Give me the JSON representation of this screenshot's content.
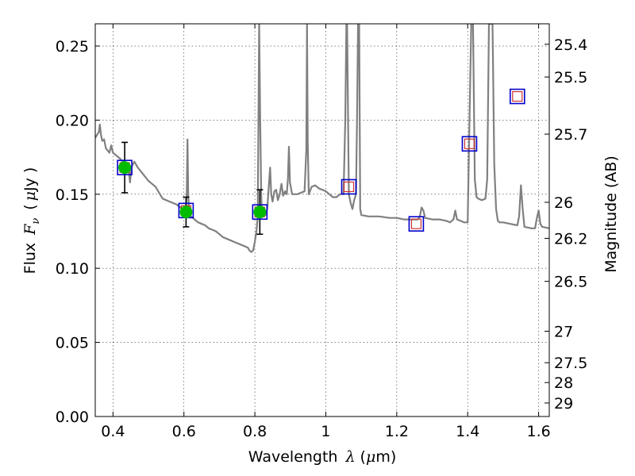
{
  "chart_data": {
    "type": "line",
    "xlabel": "Wavelength",
    "xlabel_symbol": "λ",
    "xlabel_unit_pre": "(",
    "xlabel_unit_mu": "μ",
    "xlabel_unit_post": "m)",
    "ylabel": "Flux",
    "ylabel_symbol_main": "F",
    "ylabel_symbol_sub": "ν",
    "ylabel_unit_pre": "(",
    "ylabel_unit_mu": "μ",
    "ylabel_unit_post": "Jy )",
    "y2label": "Magnitude (AB)",
    "xlim": [
      0.35,
      1.63
    ],
    "ylim": [
      0.0,
      0.265
    ],
    "x_ticks": [
      0.4,
      0.6,
      0.8,
      1.0,
      1.2,
      1.4,
      1.6
    ],
    "x_tick_labels": [
      "0.4",
      "0.6",
      "0.8",
      "1",
      "1.2",
      "1.4",
      "1.6"
    ],
    "y_ticks": [
      0.0,
      0.05,
      0.1,
      0.15,
      0.2,
      0.25
    ],
    "y_tick_labels": [
      "0.00",
      "0.05",
      "0.10",
      "0.15",
      "0.20",
      "0.25"
    ],
    "y2_tick_labels": [
      "25.4",
      "25.5",
      "25.7",
      "26",
      "26.2",
      "26.5",
      "27",
      "27.5",
      "28",
      "29"
    ],
    "grid": true,
    "colors": {
      "spectrum": "#808080",
      "observed": "#00bb00",
      "errorbar": "#000000",
      "outer_square": "#0000cc",
      "inner_square": "#cc3333"
    },
    "series": [
      {
        "kind": "spectrum",
        "points": [
          [
            0.35,
            0.188
          ],
          [
            0.355,
            0.19
          ],
          [
            0.36,
            0.192
          ],
          [
            0.363,
            0.197
          ],
          [
            0.366,
            0.19
          ],
          [
            0.37,
            0.186
          ],
          [
            0.375,
            0.187
          ],
          [
            0.38,
            0.181
          ],
          [
            0.39,
            0.178
          ],
          [
            0.395,
            0.183
          ],
          [
            0.4,
            0.178
          ],
          [
            0.41,
            0.176
          ],
          [
            0.42,
            0.174
          ],
          [
            0.43,
            0.171
          ],
          [
            0.44,
            0.167
          ],
          [
            0.445,
            0.165
          ],
          [
            0.448,
            0.158
          ],
          [
            0.452,
            0.168
          ],
          [
            0.46,
            0.172
          ],
          [
            0.47,
            0.168
          ],
          [
            0.48,
            0.165
          ],
          [
            0.49,
            0.162
          ],
          [
            0.5,
            0.159
          ],
          [
            0.51,
            0.157
          ],
          [
            0.52,
            0.155
          ],
          [
            0.53,
            0.151
          ],
          [
            0.54,
            0.147
          ],
          [
            0.55,
            0.146
          ],
          [
            0.56,
            0.145
          ],
          [
            0.57,
            0.144
          ],
          [
            0.58,
            0.143
          ],
          [
            0.59,
            0.141
          ],
          [
            0.6,
            0.139
          ],
          [
            0.605,
            0.14
          ],
          [
            0.608,
            0.15
          ],
          [
            0.61,
            0.187
          ],
          [
            0.612,
            0.15
          ],
          [
            0.615,
            0.137
          ],
          [
            0.62,
            0.135
          ],
          [
            0.63,
            0.133
          ],
          [
            0.64,
            0.131
          ],
          [
            0.65,
            0.13
          ],
          [
            0.66,
            0.129
          ],
          [
            0.67,
            0.127
          ],
          [
            0.68,
            0.126
          ],
          [
            0.69,
            0.125
          ],
          [
            0.7,
            0.123
          ],
          [
            0.71,
            0.121
          ],
          [
            0.72,
            0.12
          ],
          [
            0.73,
            0.119
          ],
          [
            0.74,
            0.118
          ],
          [
            0.75,
            0.117
          ],
          [
            0.76,
            0.116
          ],
          [
            0.77,
            0.115
          ],
          [
            0.78,
            0.114
          ],
          [
            0.785,
            0.112
          ],
          [
            0.79,
            0.111
          ],
          [
            0.795,
            0.112
          ],
          [
            0.8,
            0.118
          ],
          [
            0.805,
            0.126
          ],
          [
            0.808,
            0.135
          ],
          [
            0.81,
            0.2
          ],
          [
            0.812,
            0.265
          ],
          [
            0.815,
            0.2
          ],
          [
            0.818,
            0.15
          ],
          [
            0.82,
            0.137
          ],
          [
            0.83,
            0.136
          ],
          [
            0.835,
            0.14
          ],
          [
            0.84,
            0.158
          ],
          [
            0.843,
            0.168
          ],
          [
            0.846,
            0.15
          ],
          [
            0.85,
            0.145
          ],
          [
            0.855,
            0.152
          ],
          [
            0.86,
            0.153
          ],
          [
            0.865,
            0.146
          ],
          [
            0.87,
            0.15
          ],
          [
            0.875,
            0.157
          ],
          [
            0.88,
            0.149
          ],
          [
            0.885,
            0.152
          ],
          [
            0.89,
            0.15
          ],
          [
            0.893,
            0.16
          ],
          [
            0.896,
            0.182
          ],
          [
            0.899,
            0.158
          ],
          [
            0.905,
            0.15
          ],
          [
            0.92,
            0.15
          ],
          [
            0.93,
            0.151
          ],
          [
            0.94,
            0.152
          ],
          [
            0.945,
            0.18
          ],
          [
            0.947,
            0.265
          ],
          [
            0.949,
            0.185
          ],
          [
            0.952,
            0.15
          ],
          [
            0.96,
            0.155
          ],
          [
            0.97,
            0.156
          ],
          [
            0.98,
            0.154
          ],
          [
            0.99,
            0.153
          ],
          [
            1.0,
            0.152
          ],
          [
            1.01,
            0.15
          ],
          [
            1.02,
            0.148
          ],
          [
            1.03,
            0.148
          ],
          [
            1.04,
            0.15
          ],
          [
            1.05,
            0.15
          ],
          [
            1.055,
            0.2
          ],
          [
            1.058,
            0.265
          ],
          [
            1.06,
            0.265
          ],
          [
            1.065,
            0.15
          ],
          [
            1.07,
            0.144
          ],
          [
            1.075,
            0.14
          ],
          [
            1.08,
            0.146
          ],
          [
            1.085,
            0.15
          ],
          [
            1.088,
            0.2
          ],
          [
            1.091,
            0.265
          ],
          [
            1.094,
            0.265
          ],
          [
            1.097,
            0.14
          ],
          [
            1.1,
            0.136
          ],
          [
            1.12,
            0.135
          ],
          [
            1.15,
            0.135
          ],
          [
            1.18,
            0.134
          ],
          [
            1.2,
            0.134
          ],
          [
            1.22,
            0.133
          ],
          [
            1.24,
            0.133
          ],
          [
            1.26,
            0.133
          ],
          [
            1.265,
            0.135
          ],
          [
            1.27,
            0.141
          ],
          [
            1.275,
            0.139
          ],
          [
            1.28,
            0.134
          ],
          [
            1.3,
            0.133
          ],
          [
            1.32,
            0.133
          ],
          [
            1.34,
            0.132
          ],
          [
            1.35,
            0.131
          ],
          [
            1.36,
            0.133
          ],
          [
            1.365,
            0.139
          ],
          [
            1.37,
            0.133
          ],
          [
            1.38,
            0.132
          ],
          [
            1.39,
            0.131
          ],
          [
            1.4,
            0.131
          ],
          [
            1.405,
            0.2
          ],
          [
            1.41,
            0.265
          ],
          [
            1.415,
            0.265
          ],
          [
            1.42,
            0.16
          ],
          [
            1.425,
            0.148
          ],
          [
            1.43,
            0.147
          ],
          [
            1.44,
            0.146
          ],
          [
            1.45,
            0.147
          ],
          [
            1.455,
            0.16
          ],
          [
            1.46,
            0.265
          ],
          [
            1.47,
            0.265
          ],
          [
            1.475,
            0.17
          ],
          [
            1.48,
            0.14
          ],
          [
            1.485,
            0.132
          ],
          [
            1.49,
            0.131
          ],
          [
            1.5,
            0.131
          ],
          [
            1.52,
            0.13
          ],
          [
            1.54,
            0.129
          ],
          [
            1.545,
            0.135
          ],
          [
            1.55,
            0.156
          ],
          [
            1.555,
            0.14
          ],
          [
            1.56,
            0.128
          ],
          [
            1.58,
            0.127
          ],
          [
            1.59,
            0.127
          ],
          [
            1.595,
            0.134
          ],
          [
            1.6,
            0.139
          ],
          [
            1.605,
            0.13
          ],
          [
            1.61,
            0.128
          ],
          [
            1.63,
            0.127
          ]
        ]
      },
      {
        "kind": "observed",
        "points": [
          {
            "x": 0.433,
            "y": 0.168,
            "err": 0.017
          },
          {
            "x": 0.606,
            "y": 0.138,
            "err": 0.01
          },
          {
            "x": 0.814,
            "y": 0.138,
            "err": 0.015
          }
        ]
      },
      {
        "kind": "model_photometry",
        "points": [
          {
            "x": 0.433,
            "y": 0.168
          },
          {
            "x": 0.606,
            "y": 0.139
          },
          {
            "x": 0.814,
            "y": 0.138
          },
          {
            "x": 1.065,
            "y": 0.155
          },
          {
            "x": 1.255,
            "y": 0.13
          },
          {
            "x": 1.405,
            "y": 0.184
          },
          {
            "x": 1.54,
            "y": 0.216
          }
        ]
      }
    ]
  }
}
